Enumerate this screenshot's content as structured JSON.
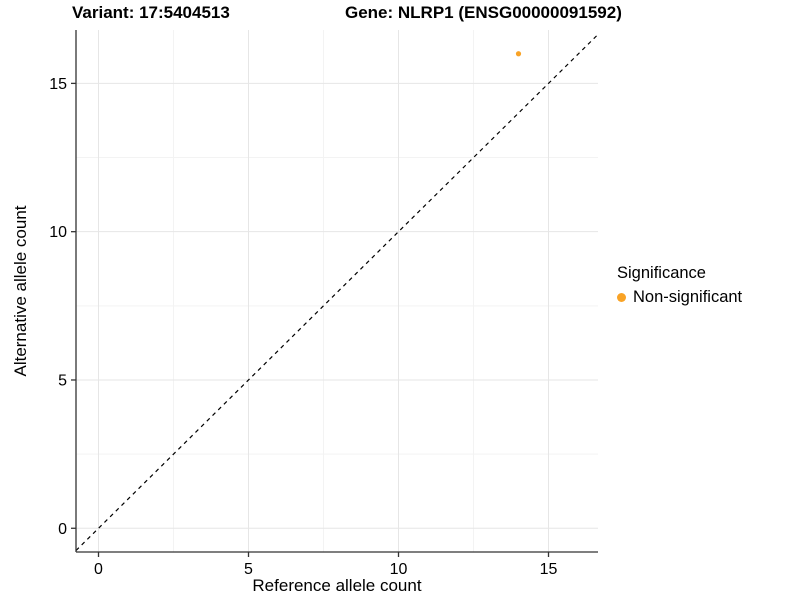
{
  "figure": {
    "title_left": "Variant: 17:5404513",
    "title_right": "Gene: NLRP1 (ENSG00000091592)"
  },
  "legend": {
    "title": "Significance",
    "items": [
      {
        "label": "Non-significant",
        "color": "#F9A326"
      }
    ]
  },
  "colors": {
    "point": "#F9A326",
    "grid_major": "#E6E6E6",
    "grid_minor": "#F3F3F3",
    "axis": "#333333",
    "reference_line": "#000000"
  },
  "chart_data": {
    "type": "scatter",
    "title": "Variant: 17:5404513 | Gene: NLRP1 (ENSG00000091592)",
    "xlabel": "Reference allele count",
    "ylabel": "Alternative allele count",
    "xlim": [
      -0.75,
      16.65
    ],
    "ylim": [
      -0.8,
      16.8
    ],
    "x_ticks": [
      0,
      5,
      10,
      15
    ],
    "y_ticks": [
      0,
      5,
      10,
      15
    ],
    "x_minor_ticks": [
      2.5,
      7.5,
      12.5
    ],
    "y_minor_ticks": [
      2.5,
      7.5,
      12.5
    ],
    "grid": true,
    "legend_position": "right",
    "series": [
      {
        "name": "Non-significant",
        "color": "#F9A326",
        "points": [
          {
            "x": 14,
            "y": 16
          }
        ]
      }
    ],
    "reference_line": {
      "type": "identity",
      "slope": 1,
      "intercept": 0,
      "style": "dashed"
    }
  }
}
